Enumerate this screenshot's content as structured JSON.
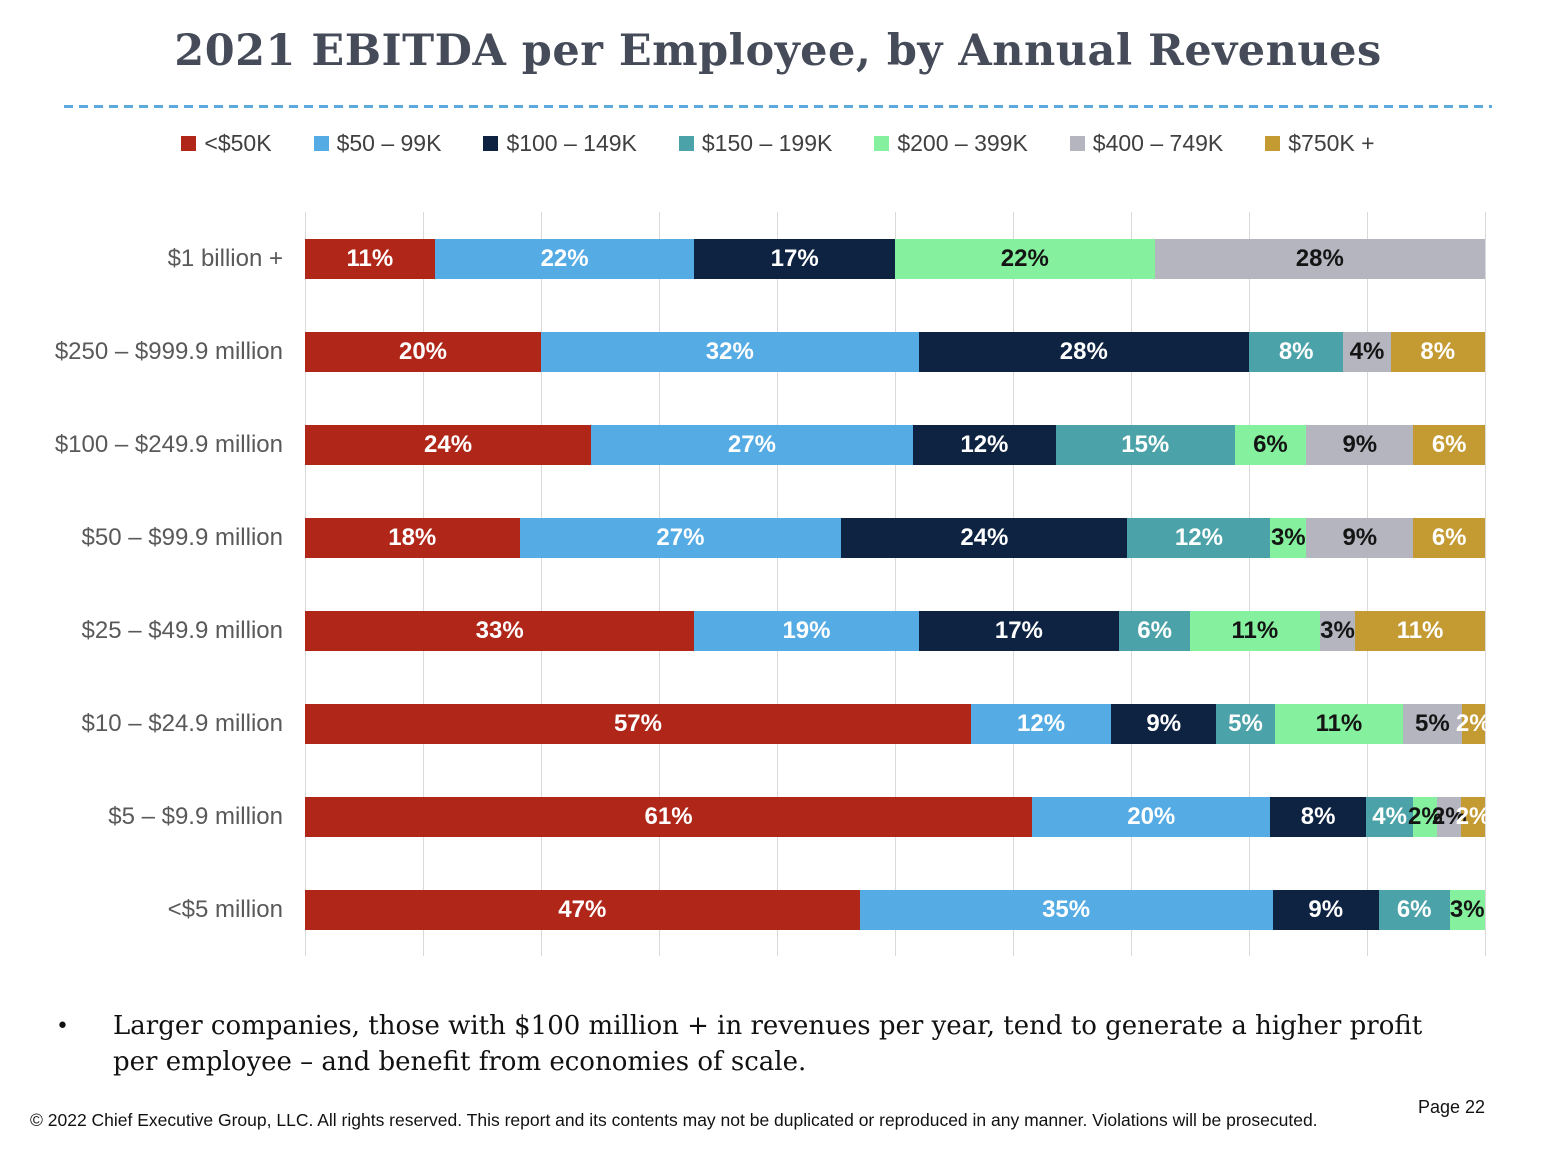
{
  "slide": {
    "title": "2021 EBITDA per Employee, by Annual Revenues",
    "bullet_marker": "•",
    "bullet": "Larger companies, those with $100 million + in revenues per year, tend to generate a higher profit per employee – and benefit from economies of scale.",
    "footer": "© 2022 Chief Executive Group, LLC. All rights reserved. This report and its contents may not be duplicated or reproduced in any manner. Violations will be prosecuted.",
    "page_label": "Page 22"
  },
  "colors": {
    "accent_rule": "#5CA9DE",
    "gridline": "#D9D9D9",
    "category_label": "#595959",
    "legend_text": "#404040",
    "title_text": "#454B58"
  },
  "chart_data": {
    "type": "bar",
    "subtype": "horizontal_100pct_stacked",
    "title": "2021 EBITDA per Employee, by Annual Revenues",
    "xlabel": "",
    "ylabel": "Annual Revenues",
    "xlim": [
      0,
      100
    ],
    "gridline_interval_pct": 10,
    "grid": "vertical",
    "legend_position": "top",
    "value_suffix": "%",
    "categories": [
      "$1 billion +",
      "$250 – $999.9 million",
      "$100 – $249.9 million",
      "$50 – $99.9 million",
      "$25 – $49.9 million",
      "$10 – $24.9 million",
      "$5 – $9.9 million",
      "<$5 million"
    ],
    "series": [
      {
        "name": "<$50K",
        "color": "#B0271A",
        "label_color": "#FFFFFF",
        "values": [
          11,
          20,
          24,
          18,
          33,
          57,
          61,
          47
        ]
      },
      {
        "name": "$50 – 99K",
        "color": "#55ABE4",
        "label_color": "#FFFFFF",
        "values": [
          22,
          32,
          27,
          27,
          19,
          12,
          20,
          35
        ]
      },
      {
        "name": "$100 – 149K",
        "color": "#0E2342",
        "label_color": "#FFFFFF",
        "values": [
          17,
          28,
          12,
          24,
          17,
          9,
          8,
          9
        ]
      },
      {
        "name": "$150 – 199K",
        "color": "#4BA2A8",
        "label_color": "#FFFFFF",
        "values": [
          0,
          8,
          15,
          12,
          6,
          5,
          4,
          6
        ]
      },
      {
        "name": "$200 – 399K",
        "color": "#85F09D",
        "label_color": "#141414",
        "values": [
          22,
          0,
          6,
          3,
          11,
          11,
          2,
          3
        ]
      },
      {
        "name": "$400 – 749K",
        "color": "#B4B5BF",
        "label_color": "#141414",
        "values": [
          28,
          4,
          9,
          9,
          3,
          5,
          2,
          0
        ]
      },
      {
        "name": "$750K +",
        "color": "#C49A33",
        "label_color": "#FFFFFF",
        "values": [
          0,
          8,
          6,
          6,
          11,
          2,
          2,
          0
        ]
      }
    ]
  }
}
